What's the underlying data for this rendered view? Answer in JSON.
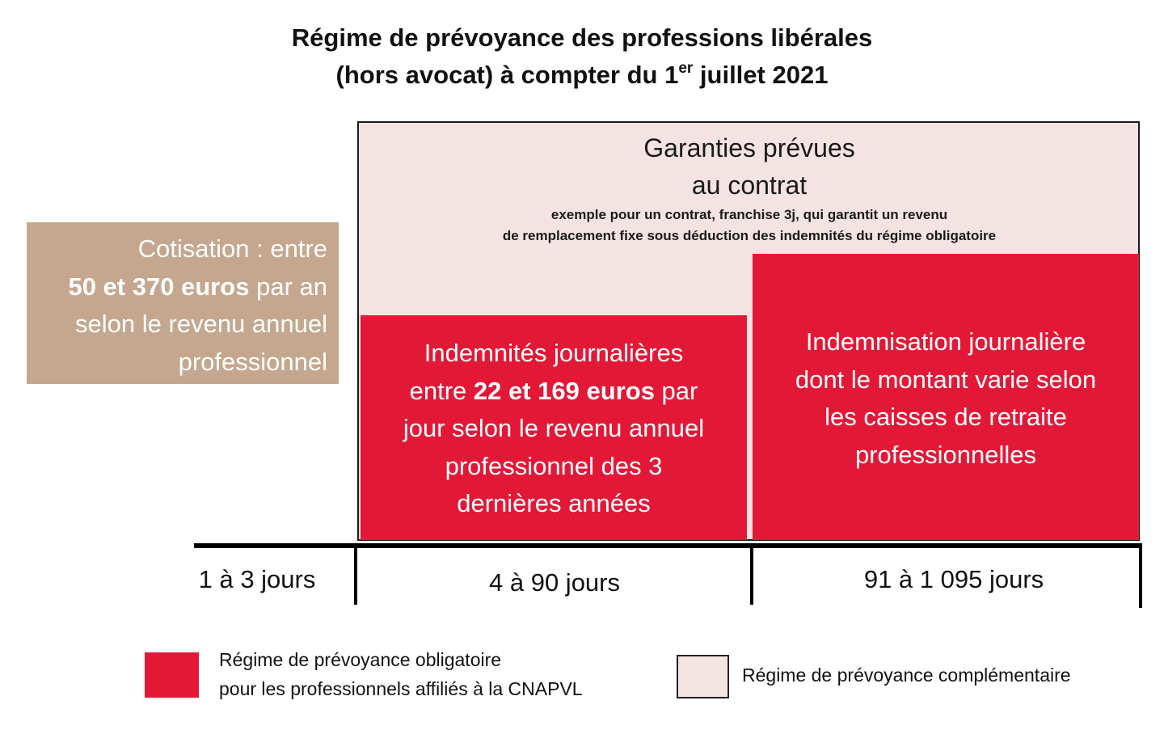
{
  "title": {
    "line1": "Régime de prévoyance des professions libérales",
    "line2_before": "(hors avocat) à compter du 1",
    "line2_sup": "er",
    "line2_after": " juillet 2021"
  },
  "guarantees": {
    "title_line1": "Garanties prévues",
    "title_line2": "au contrat",
    "note_line1": "exemple pour un contrat, franchise 3j, qui garantit un revenu",
    "note_line2": "de remplacement fixe sous déduction des indemnités du régime obligatoire"
  },
  "cotisation": {
    "line1": "Cotisation : entre",
    "line2_bold": "50 et 370 euros",
    "line2_rest": " par an",
    "line3": "selon le revenu annuel",
    "line4": "professionnel"
  },
  "box_indemnites": {
    "line1": "Indemnités journalières",
    "line2_pre": "entre ",
    "line2_bold": "22 et 169 euros",
    "line2_post": " par",
    "line3": "jour selon le revenu annuel",
    "line4": "professionnel des 3",
    "line5": "dernières années"
  },
  "box_indemnisation": {
    "line1": "Indemnisation journalière",
    "line2": "dont le montant varie selon",
    "line3": "les caisses de retraite",
    "line4": "professionnelles"
  },
  "timeline": {
    "ranges": [
      "1 à 3 jours",
      "4 à 90 jours",
      "91 à 1 095 jours"
    ]
  },
  "legend": {
    "mandatory_line1": "Régime de prévoyance obligatoire",
    "mandatory_line2": "pour les professionnels affiliés à la CNAPVL",
    "complementary": "Régime de prévoyance complémentaire"
  },
  "colors": {
    "mandatory_red": "#e31837",
    "complementary_pink": "#f4e3e3",
    "cotisation_tan": "#c4a78e"
  }
}
